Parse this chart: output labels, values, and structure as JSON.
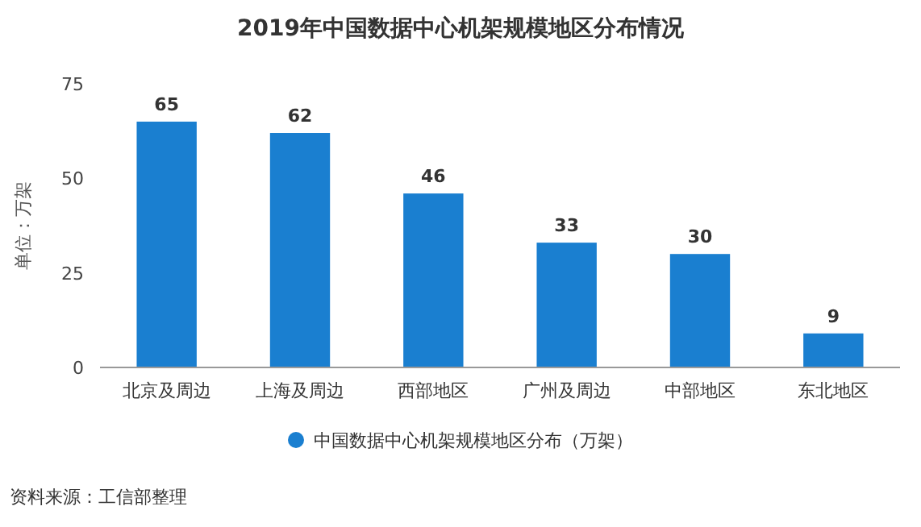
{
  "chart_data": {
    "type": "bar",
    "title": "2019年中国数据中心机架规模地区分布情况",
    "ylabel": "单位：万架",
    "categories": [
      "北京及周边",
      "上海及周边",
      "西部地区",
      "广州及周边",
      "中部地区",
      "东北地区"
    ],
    "series": [
      {
        "name": "中国数据中心机架规模地区分布（万架）",
        "color": "#1a7fd0",
        "values": [
          65,
          62,
          46,
          33,
          30,
          9
        ]
      }
    ],
    "ylim": [
      0,
      75
    ],
    "yticks": [
      0,
      25,
      50,
      75
    ],
    "data_labels": true,
    "legend": "bottom",
    "annotations": [
      "资料来源：工信部整理"
    ]
  }
}
